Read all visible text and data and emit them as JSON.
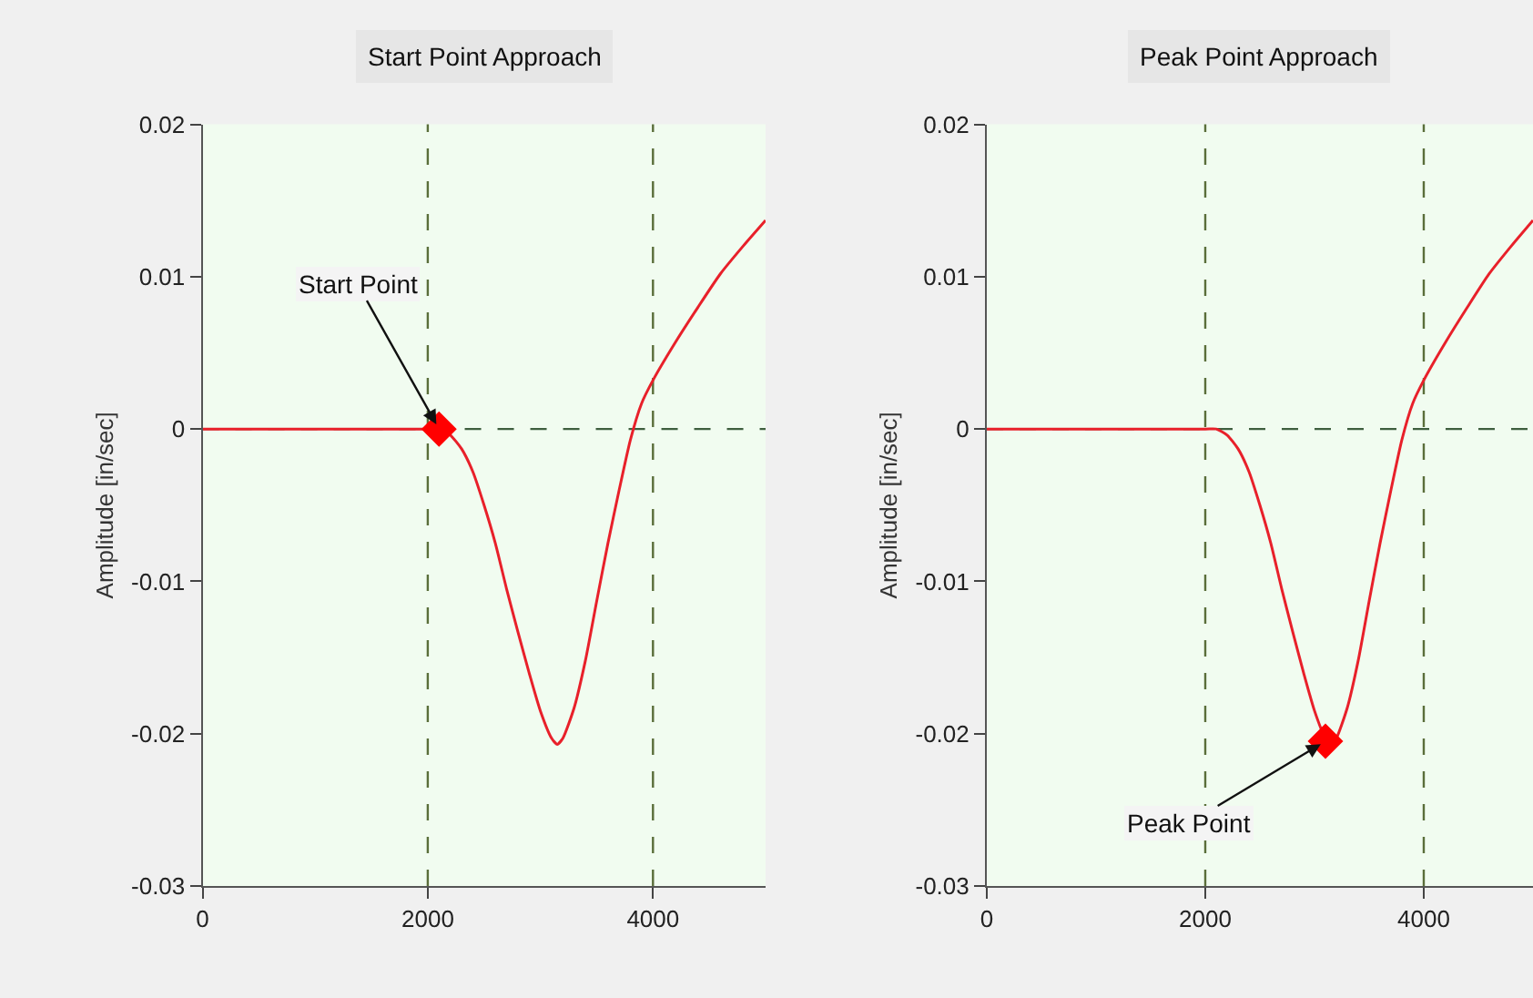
{
  "chart_data": [
    {
      "type": "line",
      "title": "Start Point Approach",
      "ylabel": "Amplitude [in/sec]",
      "xlim": [
        0,
        5000
      ],
      "xticks": [
        0,
        2000,
        4000
      ],
      "ylim": [
        -0.03,
        0.02
      ],
      "yticks": [
        -0.03,
        -0.02,
        -0.01,
        0,
        0.01,
        0.02
      ],
      "grid": false,
      "marker": "none",
      "series": [
        {
          "color": "#e8202a",
          "x": [
            0,
            2000,
            2100,
            2200,
            2300,
            2400,
            2500,
            2600,
            2700,
            2800,
            2900,
            3000,
            3100,
            3150,
            3200,
            3300,
            3400,
            3500,
            3600,
            3700,
            3800,
            3900,
            4000,
            4200,
            4400,
            4600,
            4800,
            5000
          ],
          "values": [
            0,
            0,
            0,
            -0.0004,
            -0.0013,
            -0.0028,
            -0.005,
            -0.0075,
            -0.0105,
            -0.0133,
            -0.016,
            -0.0185,
            -0.0203,
            -0.0207,
            -0.0203,
            -0.0183,
            -0.0152,
            -0.0113,
            -0.0075,
            -0.004,
            -0.0007,
            0.0017,
            0.0032,
            0.0057,
            0.008,
            0.0102,
            0.012,
            0.0137
          ]
        },
        {
          "type": "scatter",
          "marker": "diamond",
          "color": "#ff0000",
          "x": [
            2100
          ],
          "values": [
            0
          ]
        }
      ],
      "ref_lines": [
        {
          "axis": "x",
          "value": 2000,
          "color": "#5a6e3a",
          "line_style": "dashed"
        },
        {
          "axis": "x",
          "value": 4000,
          "color": "#5a6e3a",
          "line_style": "dashed"
        },
        {
          "axis": "y",
          "value": 0,
          "color": "#3e5e3e",
          "line_style": "dashed"
        }
      ],
      "annotations": [
        {
          "text": "Start Point",
          "x": 2100,
          "y": 0
        }
      ]
    },
    {
      "type": "line",
      "title": "Peak Point Approach",
      "ylabel": "Amplitude [in/sec]",
      "xlim": [
        0,
        5000
      ],
      "xticks": [
        0,
        2000,
        4000
      ],
      "ylim": [
        -0.03,
        0.02
      ],
      "yticks": [
        -0.03,
        -0.02,
        -0.01,
        0,
        0.01,
        0.02
      ],
      "grid": false,
      "marker": "none",
      "series": [
        {
          "color": "#e8202a",
          "x": [
            0,
            2000,
            2100,
            2200,
            2300,
            2400,
            2500,
            2600,
            2700,
            2800,
            2900,
            3000,
            3100,
            3150,
            3200,
            3300,
            3400,
            3500,
            3600,
            3700,
            3800,
            3900,
            4000,
            4200,
            4400,
            4600,
            4800,
            5000
          ],
          "values": [
            0,
            0,
            0,
            -0.0004,
            -0.0013,
            -0.0028,
            -0.005,
            -0.0075,
            -0.0105,
            -0.0133,
            -0.016,
            -0.0185,
            -0.0203,
            -0.0207,
            -0.0203,
            -0.0183,
            -0.0152,
            -0.0113,
            -0.0075,
            -0.004,
            -0.0007,
            0.0017,
            0.0032,
            0.0057,
            0.008,
            0.0102,
            0.012,
            0.0137
          ]
        },
        {
          "type": "scatter",
          "marker": "diamond",
          "color": "#ff0000",
          "x": [
            3100
          ],
          "values": [
            -0.0205
          ]
        }
      ],
      "ref_lines": [
        {
          "axis": "x",
          "value": 2000,
          "color": "#5a6e3a",
          "line_style": "dashed"
        },
        {
          "axis": "x",
          "value": 4000,
          "color": "#5a6e3a",
          "line_style": "dashed"
        },
        {
          "axis": "y",
          "value": 0,
          "color": "#3e5e3e",
          "line_style": "dashed"
        }
      ],
      "annotations": [
        {
          "text": "Peak Point",
          "x": 3100,
          "y": -0.0205
        }
      ]
    }
  ]
}
